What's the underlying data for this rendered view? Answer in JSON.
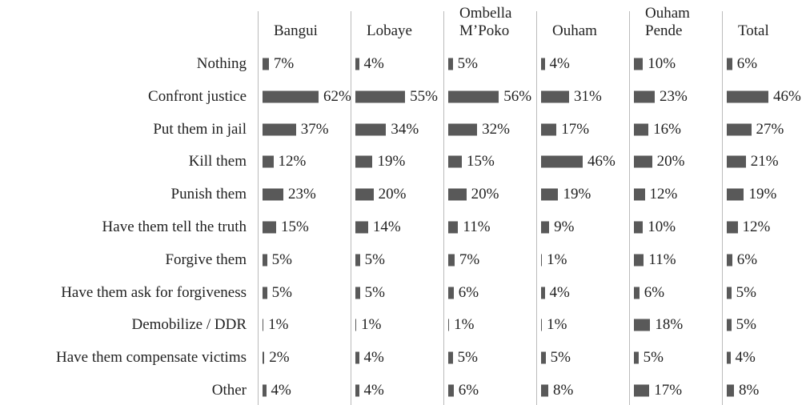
{
  "chart_data": {
    "type": "bar",
    "color": "#595959",
    "categories": [
      "Nothing",
      "Confront justice",
      "Put them in jail",
      "Kill them",
      "Punish them",
      "Have them tell the truth",
      "Forgive them",
      "Have them ask for forgiveness",
      "Demobilize / DDR",
      "Have them compensate victims",
      "Other"
    ],
    "series": [
      {
        "name": "Bangui",
        "values": [
          7,
          62,
          37,
          12,
          23,
          15,
          5,
          5,
          1,
          2,
          4
        ],
        "value_labels": [
          "7%",
          "62%",
          "37%",
          "12%",
          "23%",
          "15%",
          "5%",
          "5%",
          "1%",
          "2%",
          "4%"
        ]
      },
      {
        "name": "Lobaye",
        "values": [
          4,
          55,
          34,
          19,
          20,
          14,
          5,
          5,
          1,
          4,
          4
        ],
        "value_labels": [
          "4%",
          "55%",
          "34%",
          "19%",
          "20%",
          "14%",
          "5%",
          "5%",
          "1%",
          "4%",
          "4%"
        ]
      },
      {
        "name": "Ombella M’Poko",
        "values": [
          5,
          56,
          32,
          15,
          20,
          11,
          7,
          6,
          1,
          5,
          6
        ],
        "value_labels": [
          "5%",
          "56%",
          "32%",
          "15%",
          "20%",
          "11%",
          "7%",
          "6%",
          "1%",
          "5%",
          "6%"
        ]
      },
      {
        "name": "Ouham",
        "values": [
          4,
          31,
          17,
          46,
          19,
          9,
          1,
          4,
          1,
          5,
          8
        ],
        "value_labels": [
          "4%",
          "31%",
          "17%",
          "46%",
          "19%",
          "9%",
          "1%",
          "4%",
          "1%",
          "5%",
          "8%"
        ]
      },
      {
        "name": "Ouham Pende",
        "values": [
          10,
          23,
          16,
          20,
          12,
          10,
          11,
          6,
          18,
          5,
          17
        ],
        "value_labels": [
          "10%",
          "23%",
          "16%",
          "20%",
          "12%",
          "10%",
          "11%",
          "6%",
          "18%",
          "5%",
          "17%"
        ]
      },
      {
        "name": "Total",
        "values": [
          6,
          46,
          27,
          21,
          19,
          12,
          6,
          5,
          5,
          4,
          8
        ],
        "value_labels": [
          "6%",
          "46%",
          "27%",
          "21%",
          "19%",
          "12%",
          "6%",
          "5%",
          "5%",
          "4%",
          "8%"
        ]
      }
    ]
  }
}
